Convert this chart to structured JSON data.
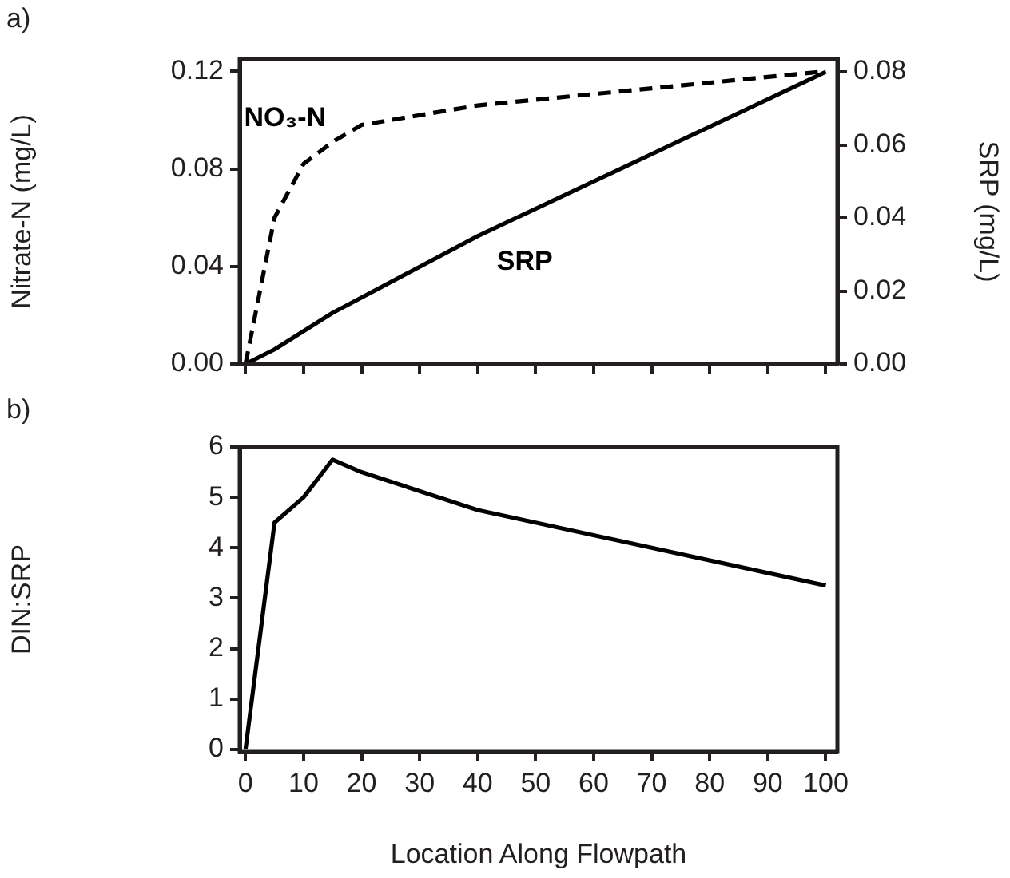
{
  "chart_data": [
    {
      "type": "line",
      "annotations": [
        "a)"
      ],
      "ylabel": "Nitrate-N (mg/L)",
      "y2label": "SRP (mg/L)",
      "xlim": [
        -1,
        102
      ],
      "xticks": [
        0,
        10,
        20,
        30,
        40,
        50,
        60,
        70,
        80,
        90,
        100
      ],
      "ylim": [
        0,
        0.125
      ],
      "yticks": [
        {
          "value": 0,
          "label": "0.00"
        },
        0.04,
        0.08,
        0.12
      ],
      "y2lim": [
        0,
        0.0835
      ],
      "y2ticks": [
        {
          "value": 0,
          "label": "0.00"
        },
        0.02,
        0.04,
        0.06,
        0.08
      ],
      "tick_labels": "y",
      "grid": false,
      "legend": false,
      "marker": "none",
      "series": [
        {
          "name": "NO₃-N",
          "color": "#000000",
          "line_style": "dashed",
          "x": [
            0,
            5,
            10,
            15,
            20,
            40,
            100
          ],
          "values": [
            0,
            0.06,
            0.082,
            0.091,
            0.098,
            0.106,
            0.12
          ]
        },
        {
          "name": "SRP",
          "color": "#000000",
          "line_style": "solid",
          "axis": "y2",
          "x": [
            0,
            5,
            15,
            40,
            100
          ],
          "values": [
            0,
            0.004,
            0.014,
            0.035,
            0.08
          ]
        }
      ]
    },
    {
      "type": "line",
      "annotations": [
        "b)"
      ],
      "xlabel": "Location Along Flowpath",
      "ylabel": "DIN:SRP",
      "xlim": [
        -1,
        102
      ],
      "xticks": [
        0,
        10,
        20,
        30,
        40,
        50,
        60,
        70,
        80,
        90,
        100
      ],
      "ylim": [
        -0.05,
        6
      ],
      "yticks": [
        0,
        1,
        2,
        3,
        4,
        5,
        6
      ],
      "grid": false,
      "legend": false,
      "marker": "none",
      "series": [
        {
          "color": "#000000",
          "line_style": "solid",
          "x": [
            0,
            5,
            10,
            15,
            20,
            40,
            100
          ],
          "values": [
            0,
            4.5,
            5,
            5.75,
            5.5,
            4.75,
            3.25
          ]
        }
      ]
    }
  ]
}
